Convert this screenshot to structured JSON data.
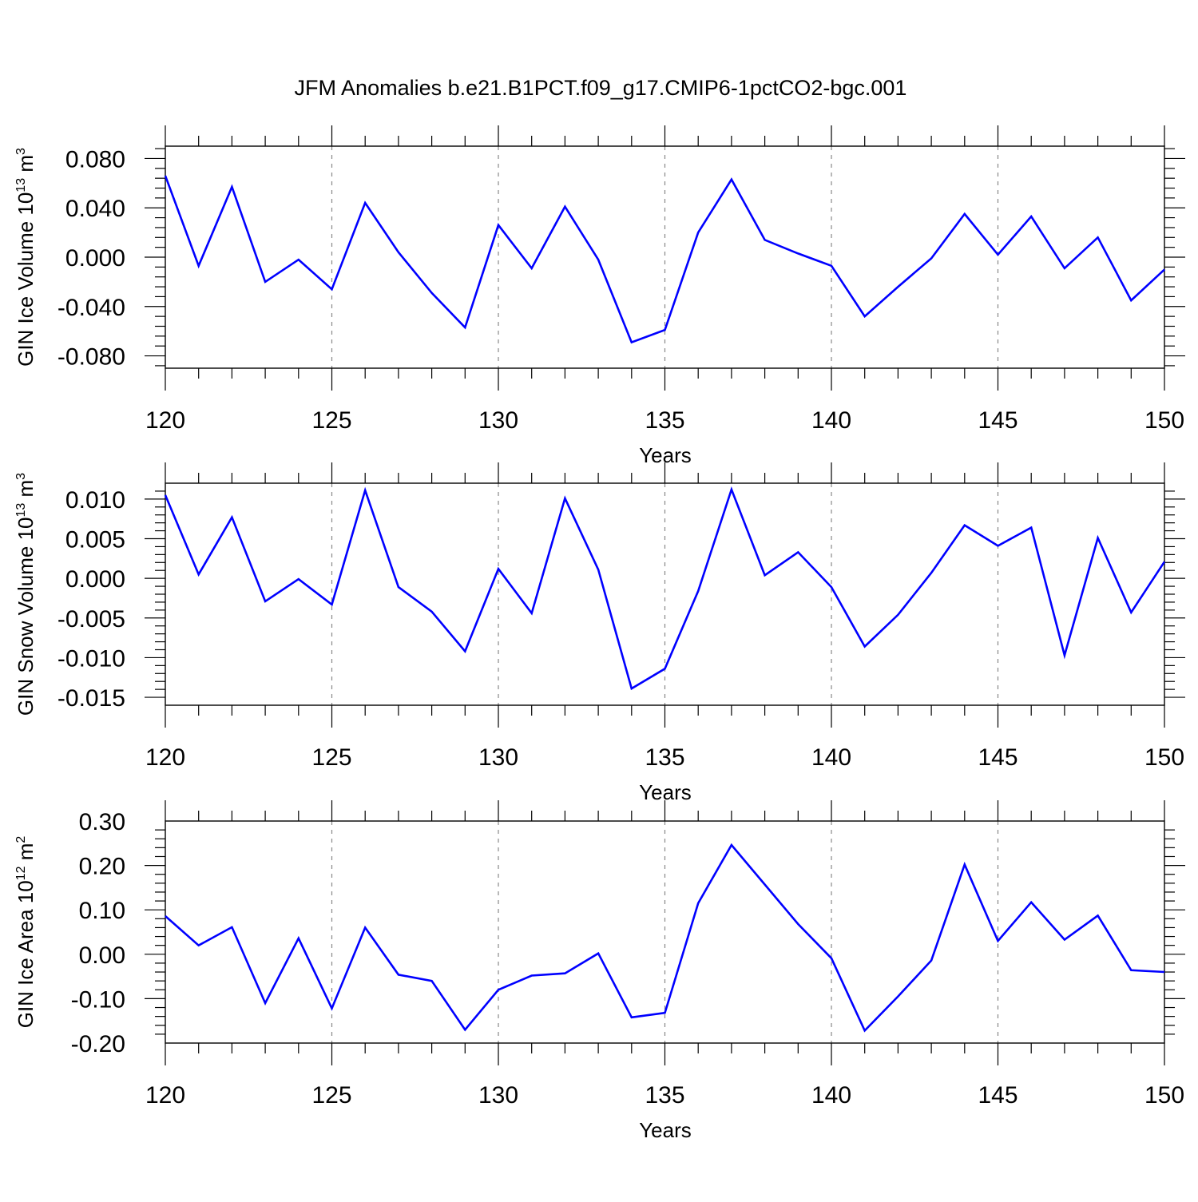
{
  "title": "JFM Anomalies b.e21.B1PCT.f09_g17.CMIP6-1pctCO2-bgc.001",
  "colors": {
    "line": "#0000ff",
    "grid": "#888888",
    "frame": "#000000"
  },
  "chart_data": [
    {
      "type": "line",
      "xlabel": "Years",
      "ylabel": {
        "text": "GIN Ice Volume 10",
        "exponent": "13",
        "unit": " m",
        "unit_exponent": "3"
      },
      "xlim": [
        120,
        150
      ],
      "ylim": [
        -0.09,
        0.09
      ],
      "xticks": [
        120,
        125,
        130,
        135,
        140,
        145,
        150
      ],
      "xtick_labels": [
        "120",
        "125",
        "130",
        "135",
        "140",
        "145",
        "150"
      ],
      "yticks": [
        -0.08,
        -0.04,
        0.0,
        0.04,
        0.08
      ],
      "ytick_labels": [
        "-0.080",
        "-0.040",
        "0.000",
        "0.040",
        "0.080"
      ],
      "grid": "x-dashed",
      "x": [
        120,
        121,
        122,
        123,
        124,
        125,
        126,
        127,
        128,
        129,
        130,
        131,
        132,
        133,
        134,
        135,
        136,
        137,
        138,
        139,
        140,
        141,
        142,
        143,
        144,
        145,
        146,
        147,
        148,
        149,
        150
      ],
      "values": [
        0.066,
        -0.007,
        0.057,
        -0.02,
        -0.002,
        -0.026,
        0.044,
        0.004,
        -0.029,
        -0.057,
        0.026,
        -0.009,
        0.041,
        -0.002,
        -0.069,
        -0.059,
        0.02,
        0.063,
        0.014,
        0.003,
        -0.007,
        -0.048,
        -0.024,
        -0.001,
        0.035,
        0.002,
        0.033,
        -0.009,
        0.016,
        -0.035,
        -0.01
      ]
    },
    {
      "type": "line",
      "xlabel": "Years",
      "ylabel": {
        "text": "GIN Snow Volume 10",
        "exponent": "13",
        "unit": " m",
        "unit_exponent": "3"
      },
      "xlim": [
        120,
        150
      ],
      "ylim": [
        -0.016,
        0.012
      ],
      "xticks": [
        120,
        125,
        130,
        135,
        140,
        145,
        150
      ],
      "xtick_labels": [
        "120",
        "125",
        "130",
        "135",
        "140",
        "145",
        "150"
      ],
      "yticks": [
        -0.015,
        -0.01,
        -0.005,
        0.0,
        0.005,
        0.01
      ],
      "ytick_labels": [
        "-0.015",
        "-0.010",
        "-0.005",
        "0.000",
        "0.005",
        "0.010"
      ],
      "grid": "x-dashed",
      "x": [
        120,
        121,
        122,
        123,
        124,
        125,
        126,
        127,
        128,
        129,
        130,
        131,
        132,
        133,
        134,
        135,
        136,
        137,
        138,
        139,
        140,
        141,
        142,
        143,
        144,
        145,
        146,
        147,
        148,
        149,
        150
      ],
      "values": [
        0.0105,
        0.0005,
        0.0077,
        -0.0029,
        -0.0001,
        -0.0033,
        0.0111,
        -0.0011,
        -0.0042,
        -0.0092,
        0.0012,
        -0.0044,
        0.0101,
        0.0011,
        -0.0139,
        -0.0114,
        -0.0016,
        0.0112,
        0.0004,
        0.0033,
        -0.0011,
        -0.0086,
        -0.0046,
        0.0007,
        0.0067,
        0.0041,
        0.0064,
        -0.0097,
        0.0051,
        -0.0043,
        0.0021
      ]
    },
    {
      "type": "line",
      "xlabel": "Years",
      "ylabel": {
        "text": "GIN Ice Area 10",
        "exponent": "12",
        "unit": " m",
        "unit_exponent": "2"
      },
      "xlim": [
        120,
        150
      ],
      "ylim": [
        -0.2,
        0.3
      ],
      "xticks": [
        120,
        125,
        130,
        135,
        140,
        145,
        150
      ],
      "xtick_labels": [
        "120",
        "125",
        "130",
        "135",
        "140",
        "145",
        "150"
      ],
      "yticks": [
        -0.2,
        -0.1,
        0.0,
        0.1,
        0.2,
        0.3
      ],
      "ytick_labels": [
        "-0.20",
        "-0.10",
        "0.00",
        "0.10",
        "0.20",
        "0.30"
      ],
      "grid": "x-dashed",
      "x": [
        120,
        121,
        122,
        123,
        124,
        125,
        126,
        127,
        128,
        129,
        130,
        131,
        132,
        133,
        134,
        135,
        136,
        137,
        138,
        139,
        140,
        141,
        142,
        143,
        144,
        145,
        146,
        147,
        148,
        149,
        150
      ],
      "values": [
        0.086,
        0.02,
        0.061,
        -0.11,
        0.036,
        -0.122,
        0.06,
        -0.046,
        -0.06,
        -0.17,
        -0.08,
        -0.048,
        -0.043,
        0.002,
        -0.142,
        -0.132,
        0.115,
        0.246,
        0.157,
        0.068,
        -0.009,
        -0.172,
        -0.095,
        -0.014,
        0.202,
        0.03,
        0.117,
        0.033,
        0.087,
        -0.036,
        -0.04
      ]
    }
  ]
}
